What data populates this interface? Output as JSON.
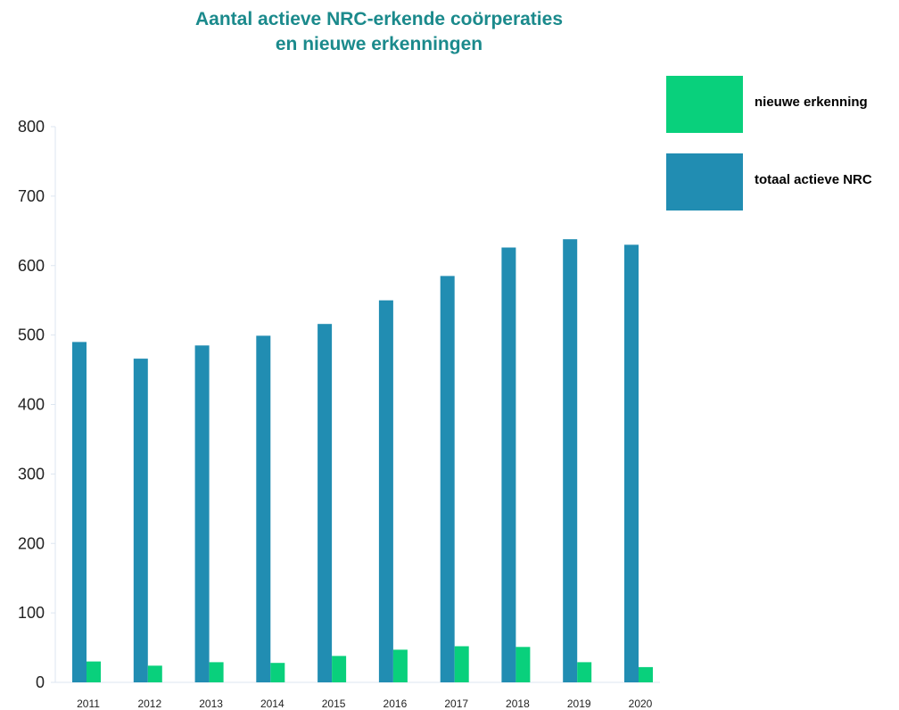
{
  "chart_data": {
    "type": "bar",
    "title_line1": "Aantal actieve NRC-erkende coörperaties",
    "title_line2": "en nieuwe erkenningen",
    "categories": [
      "2011",
      "2012",
      "2013",
      "2014",
      "2015",
      "2016",
      "2017",
      "2018",
      "2019",
      "2020"
    ],
    "series": [
      {
        "name": "totaal actieve NRC",
        "color": "#218db2",
        "values": [
          490,
          466,
          485,
          499,
          516,
          550,
          585,
          626,
          638,
          630
        ]
      },
      {
        "name": "nieuwe erkenning",
        "color": "#09d07c",
        "values": [
          30,
          24,
          29,
          28,
          38,
          47,
          52,
          51,
          29,
          22
        ]
      }
    ],
    "ylim": [
      0,
      800
    ],
    "yticks": [
      "0",
      "100",
      "200",
      "300",
      "400",
      "500",
      "600",
      "700",
      "800"
    ],
    "grid": false,
    "legend_position": "top-right"
  },
  "legend": {
    "items": [
      {
        "label": "nieuwe erkenning",
        "color": "#09d07c"
      },
      {
        "label": "totaal actieve NRC",
        "color": "#218db2"
      }
    ]
  }
}
